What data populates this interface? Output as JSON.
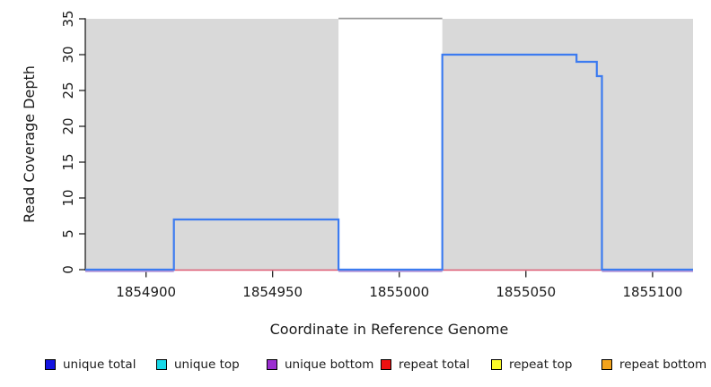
{
  "axes": {
    "xlabel": "Coordinate in Reference Genome",
    "ylabel": "Read Coverage Depth"
  },
  "chart_data": {
    "type": "line",
    "title": "",
    "xlabel": "Coordinate in Reference Genome",
    "ylabel": "Read Coverage Depth",
    "x_range": [
      1854876,
      1855116
    ],
    "y_range": [
      0,
      35
    ],
    "x_ticks": [
      1854900,
      1854950,
      1855000,
      1855050,
      1855100
    ],
    "y_ticks": [
      0,
      5,
      10,
      15,
      20,
      25,
      30,
      35
    ],
    "grid": false,
    "legend_position": "bottom",
    "background_shading": {
      "unique_regions": [
        [
          1854876,
          1854976
        ],
        [
          1855017,
          1855116
        ]
      ],
      "repeat_region": [
        1854976,
        1855017
      ],
      "fill": "#d9d9d9",
      "repeat_top_border": "#999999"
    },
    "series": [
      {
        "name": "unique total",
        "color": "#3c7bf0",
        "style": "step",
        "line_width": 2.2,
        "points": [
          [
            1854876,
            0
          ],
          [
            1854911,
            7
          ],
          [
            1854976,
            0
          ],
          [
            1855017,
            30
          ],
          [
            1855070,
            29
          ],
          [
            1855078,
            27
          ],
          [
            1855080,
            0
          ],
          [
            1855116,
            0
          ]
        ]
      },
      {
        "name": "repeat total",
        "color": "#dc5a72",
        "style": "step",
        "line_width": 1.5,
        "points": [
          [
            1854876,
            0
          ],
          [
            1855116,
            0
          ]
        ]
      },
      {
        "name": "unique bottom",
        "color": "#b09ae0",
        "style": "step",
        "line_width": 1.6,
        "points": [
          [
            1854876,
            0
          ],
          [
            1855116,
            0
          ]
        ]
      }
    ]
  },
  "legend": {
    "items": [
      {
        "label": "unique total",
        "color": "#1414e0"
      },
      {
        "label": "unique top",
        "color": "#18d8e8"
      },
      {
        "label": "unique bottom",
        "color": "#9b2fd0"
      },
      {
        "label": "repeat total",
        "color": "#ee1010"
      },
      {
        "label": "repeat top",
        "color": "#fbfb28"
      },
      {
        "label": "repeat bottom",
        "color": "#f2a31d"
      }
    ]
  }
}
